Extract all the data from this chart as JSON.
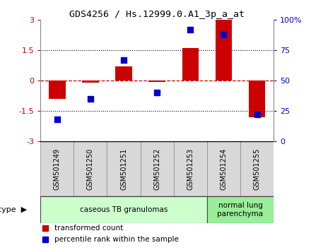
{
  "title": "GDS4256 / Hs.12999.0.A1_3p_a_at",
  "samples": [
    "GSM501249",
    "GSM501250",
    "GSM501251",
    "GSM501252",
    "GSM501253",
    "GSM501254",
    "GSM501255"
  ],
  "red_values": [
    -0.9,
    -0.1,
    0.7,
    -0.05,
    1.6,
    3.0,
    -1.8
  ],
  "blue_values": [
    18,
    35,
    67,
    40,
    92,
    88,
    22
  ],
  "ylim": [
    -3,
    3
  ],
  "y2lim": [
    0,
    100
  ],
  "yticks": [
    -3,
    -1.5,
    0,
    1.5,
    3
  ],
  "y2ticks": [
    0,
    25,
    50,
    75,
    100
  ],
  "y2ticklabels": [
    "0",
    "25",
    "50",
    "75",
    "100%"
  ],
  "red_color": "#cc0000",
  "blue_color": "#0000cc",
  "hline_color": "#cc0000",
  "cell_groups": [
    {
      "label": "caseous TB granulomas",
      "start": 0,
      "end": 5,
      "color": "#ccffcc"
    },
    {
      "label": "normal lung\nparenchyma",
      "start": 5,
      "end": 7,
      "color": "#99ee99"
    }
  ],
  "cell_type_label": "cell type",
  "legend_red": "transformed count",
  "legend_blue": "percentile rank within the sample",
  "bar_width": 0.5,
  "blue_marker_size": 6
}
